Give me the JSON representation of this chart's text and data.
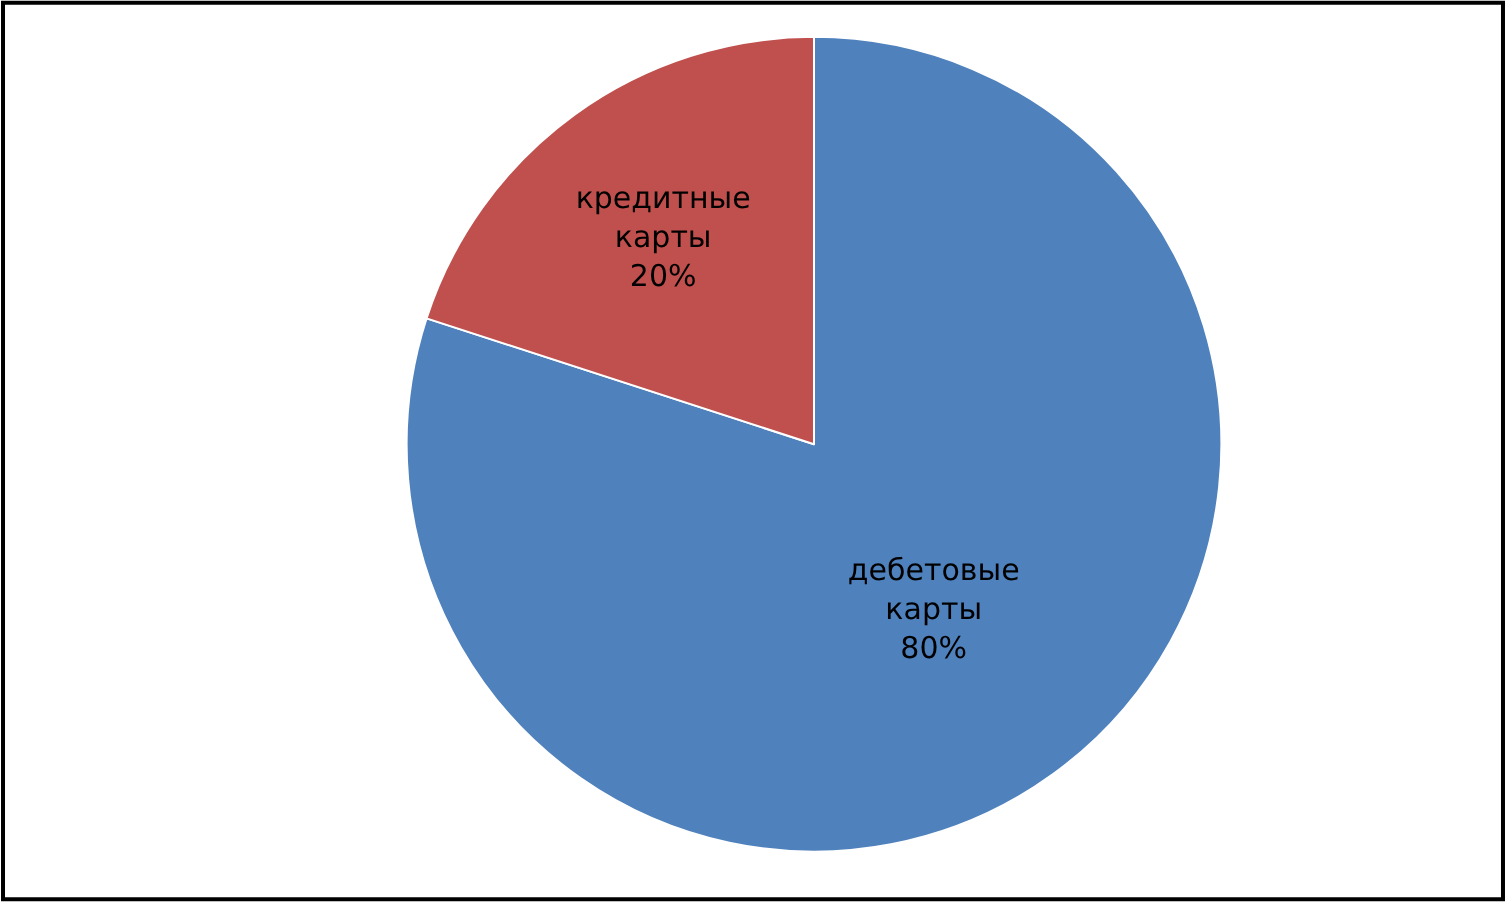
{
  "chart_data": {
    "type": "pie",
    "categories": [
      "дебетовые карты",
      "кредитные карты"
    ],
    "values": [
      80,
      20
    ],
    "colors": [
      "#4f81bd",
      "#c0504d"
    ],
    "value_labels": [
      "80%",
      "20%"
    ],
    "legend": false
  }
}
